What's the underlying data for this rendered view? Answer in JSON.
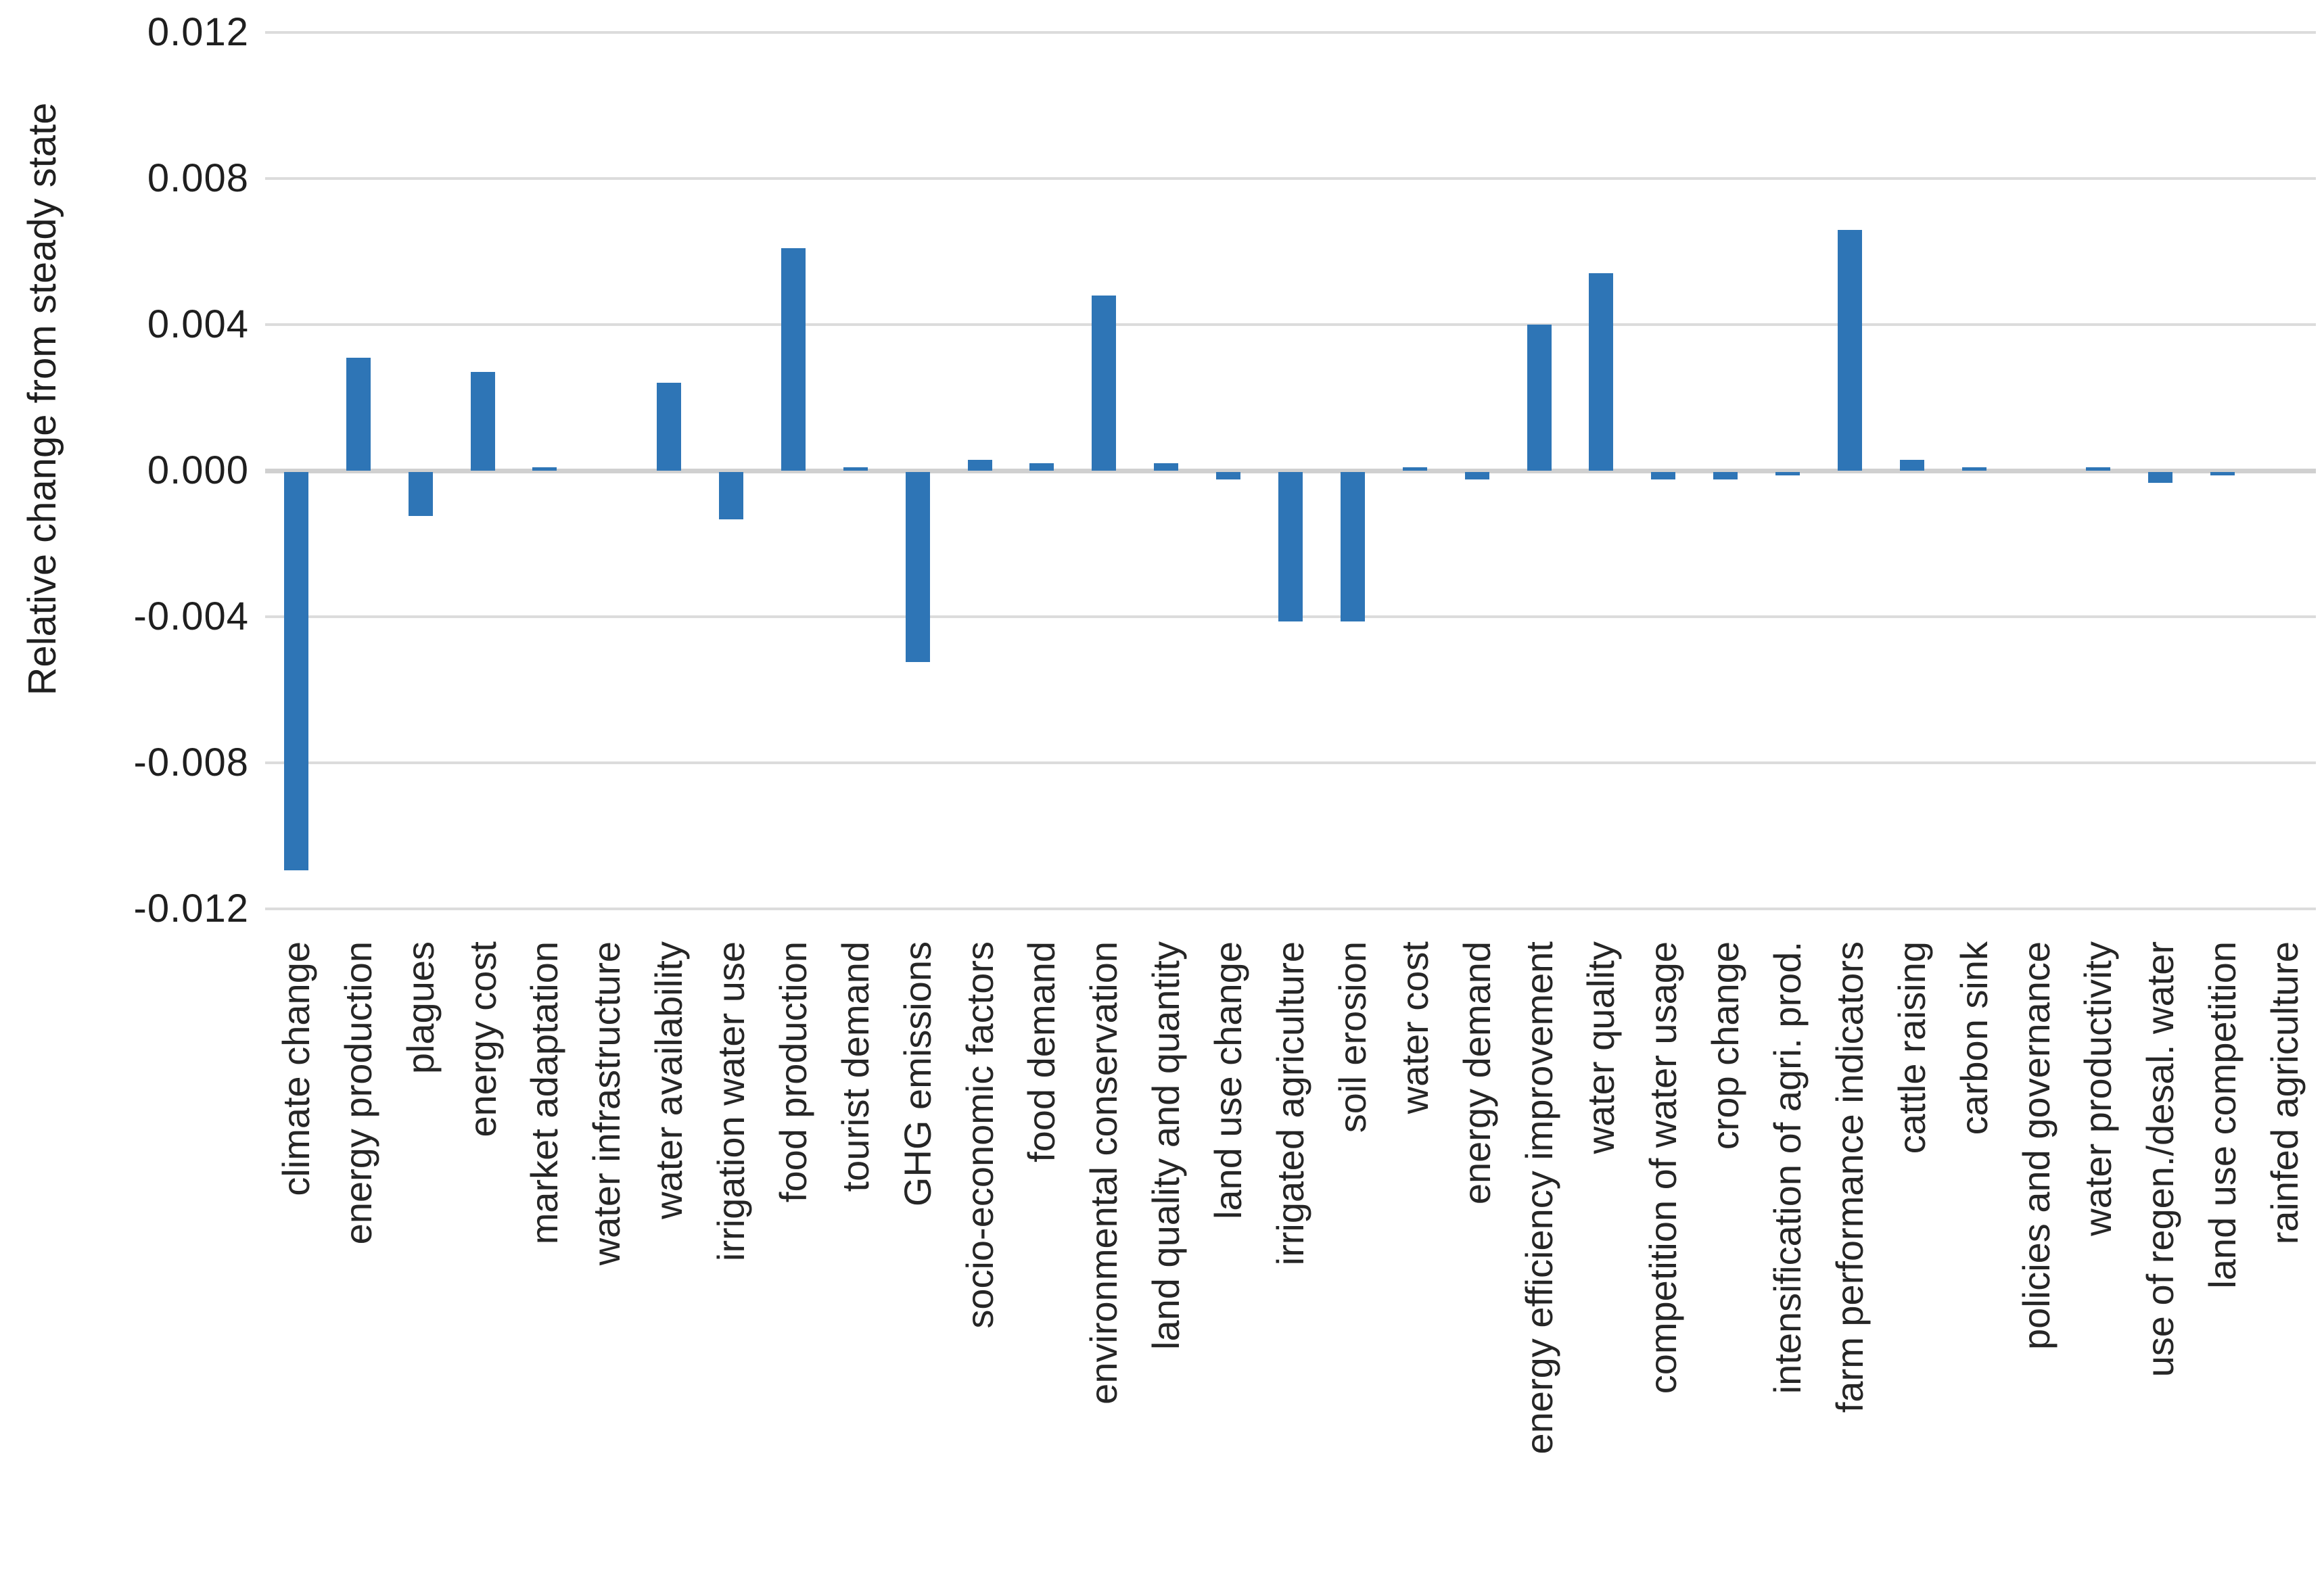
{
  "chart_data": {
    "type": "bar",
    "title": "",
    "xlabel": "",
    "ylabel": "Relative change from steady state",
    "legend_position": "none",
    "grid": true,
    "ylim": [
      -0.012,
      0.012
    ],
    "ytick_step": 0.004,
    "yticks": [
      0.012,
      0.008,
      0.004,
      0.0,
      -0.004,
      -0.008,
      -0.012
    ],
    "ytick_labels": [
      "0.012",
      "0.008",
      "0.004",
      "0.000",
      "-0.004",
      "-0.008",
      "-0.012"
    ],
    "bar_color": "#2E75B6",
    "gridline_color": "#DCDCDC",
    "zero_line_color": "#D0D0D0",
    "text_color": "#262626",
    "categories": [
      "climate change",
      "energy production",
      "plagues",
      "energy cost",
      "market adaptation",
      "water infrastructure",
      "water availability",
      "irrigation water use",
      "food production",
      "tourist demand",
      "GHG emissions",
      "socio-economic factors",
      "food demand",
      "environmental conservation",
      "land quality and quantity",
      "land use change",
      "irrigated agriculture",
      "soil erosion",
      "water cost",
      "energy demand",
      "energy efficiency improvement",
      "water quality",
      "competition of water usage",
      "crop change",
      "intensification of agri. prod.",
      "farm performance indicators",
      "cattle raising",
      "carbon sink",
      "policies and governance",
      "water productivity",
      "use of regen./desal. water",
      "land use competition",
      "rainfed agriculture"
    ],
    "values": [
      -0.0109,
      0.0031,
      -0.0012,
      0.0027,
      0.0001,
      0.0,
      0.0024,
      -0.0013,
      0.0061,
      0.0001,
      -0.0052,
      0.0003,
      0.0002,
      0.0048,
      0.0002,
      -0.0002,
      -0.0041,
      -0.0041,
      0.0001,
      -0.0002,
      0.004,
      0.0054,
      -0.0002,
      -0.0002,
      -0.0001,
      0.0066,
      0.0003,
      0.0001,
      0.0,
      0.0001,
      -0.0003,
      -0.0001,
      0.0
    ]
  }
}
